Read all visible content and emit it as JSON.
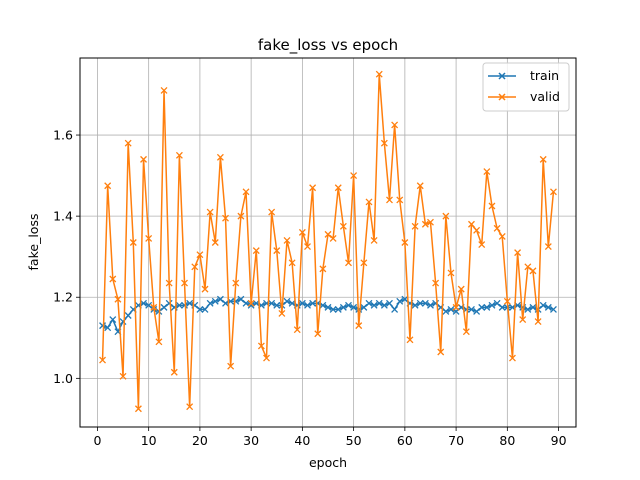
{
  "chart_data": {
    "type": "line",
    "title": "fake_loss vs epoch",
    "xlabel": "epoch",
    "ylabel": "fake_loss",
    "xlim": [
      -3.4,
      93.4
    ],
    "ylim": [
      0.88,
      1.79
    ],
    "xticks": [
      0,
      10,
      20,
      30,
      40,
      50,
      60,
      70,
      80,
      90
    ],
    "yticks": [
      1.0,
      1.2,
      1.4,
      1.6
    ],
    "ytick_labels": [
      "1.0",
      "1.2",
      "1.4",
      "1.6"
    ],
    "grid": true,
    "legend_position": "top-right",
    "x": [
      1,
      2,
      3,
      4,
      5,
      6,
      7,
      8,
      9,
      10,
      11,
      12,
      13,
      14,
      15,
      16,
      17,
      18,
      19,
      20,
      21,
      22,
      23,
      24,
      25,
      26,
      27,
      28,
      29,
      30,
      31,
      32,
      33,
      34,
      35,
      36,
      37,
      38,
      39,
      40,
      41,
      42,
      43,
      44,
      45,
      46,
      47,
      48,
      49,
      50,
      51,
      52,
      53,
      54,
      55,
      56,
      57,
      58,
      59,
      60,
      61,
      62,
      63,
      64,
      65,
      66,
      67,
      68,
      69,
      70,
      71,
      72,
      73,
      74,
      75,
      76,
      77,
      78,
      79,
      80,
      81,
      82,
      83,
      84,
      85,
      86,
      87,
      88,
      89
    ],
    "series": [
      {
        "name": "train",
        "color": "#1f77b4",
        "marker": "x",
        "values": [
          1.13,
          1.125,
          1.145,
          1.115,
          1.14,
          1.155,
          1.17,
          1.18,
          1.185,
          1.18,
          1.17,
          1.165,
          1.175,
          1.185,
          1.175,
          1.18,
          1.18,
          1.185,
          1.18,
          1.17,
          1.17,
          1.185,
          1.19,
          1.195,
          1.185,
          1.19,
          1.19,
          1.195,
          1.185,
          1.18,
          1.185,
          1.18,
          1.185,
          1.185,
          1.18,
          1.18,
          1.19,
          1.185,
          1.18,
          1.185,
          1.18,
          1.185,
          1.185,
          1.18,
          1.175,
          1.17,
          1.17,
          1.175,
          1.18,
          1.175,
          1.17,
          1.175,
          1.185,
          1.18,
          1.185,
          1.18,
          1.185,
          1.17,
          1.19,
          1.195,
          1.185,
          1.18,
          1.185,
          1.185,
          1.18,
          1.185,
          1.175,
          1.165,
          1.17,
          1.165,
          1.175,
          1.17,
          1.17,
          1.165,
          1.175,
          1.175,
          1.18,
          1.185,
          1.175,
          1.175,
          1.175,
          1.18,
          1.175,
          1.17,
          1.175,
          1.17,
          1.18,
          1.175,
          1.17
        ]
      },
      {
        "name": "valid",
        "color": "#ff7f0e",
        "marker": "x",
        "values": [
          1.045,
          1.475,
          1.245,
          1.195,
          1.005,
          1.58,
          1.335,
          0.925,
          1.54,
          1.345,
          1.175,
          1.09,
          1.71,
          1.235,
          1.015,
          1.55,
          1.235,
          0.93,
          1.275,
          1.305,
          1.22,
          1.41,
          1.335,
          1.545,
          1.395,
          1.03,
          1.235,
          1.4,
          1.46,
          1.185,
          1.315,
          1.08,
          1.05,
          1.41,
          1.315,
          1.16,
          1.34,
          1.285,
          1.12,
          1.36,
          1.325,
          1.47,
          1.11,
          1.27,
          1.355,
          1.345,
          1.47,
          1.375,
          1.285,
          1.5,
          1.13,
          1.285,
          1.435,
          1.34,
          1.75,
          1.58,
          1.44,
          1.625,
          1.44,
          1.335,
          1.095,
          1.375,
          1.475,
          1.38,
          1.385,
          1.235,
          1.065,
          1.4,
          1.26,
          1.175,
          1.22,
          1.115,
          1.38,
          1.365,
          1.33,
          1.51,
          1.425,
          1.37,
          1.35,
          1.19,
          1.05,
          1.31,
          1.145,
          1.275,
          1.265,
          1.14,
          1.54,
          1.325,
          1.46
        ]
      }
    ]
  }
}
